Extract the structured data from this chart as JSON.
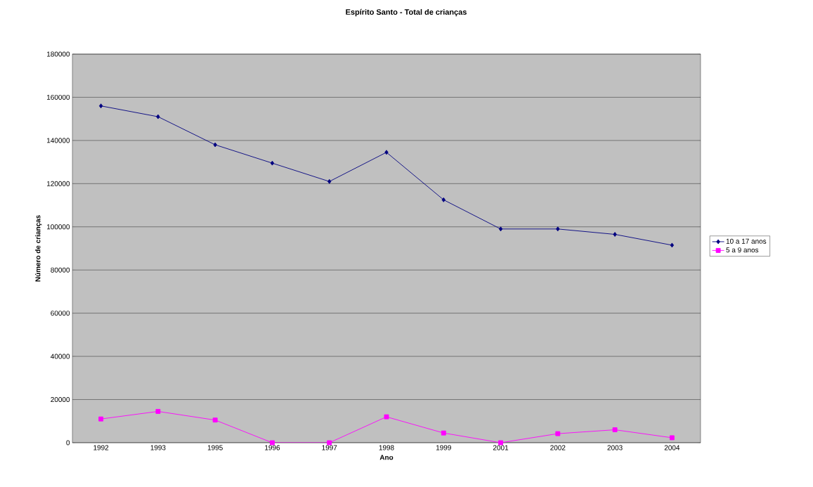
{
  "chart_data": {
    "type": "line",
    "title": "Espírito Santo - Total de crianças",
    "xlabel": "Ano",
    "ylabel": "Número de crianças",
    "categories": [
      "1992",
      "1993",
      "1995",
      "1996",
      "1997",
      "1998",
      "1999",
      "2001",
      "2002",
      "2003",
      "2004"
    ],
    "series": [
      {
        "name": "10 a 17 anos",
        "color": "#000080",
        "marker": "diamond",
        "values": [
          156000,
          151000,
          138000,
          129500,
          121000,
          134500,
          112500,
          99000,
          99000,
          96500,
          91500
        ]
      },
      {
        "name": "5 a 9 anos",
        "color": "#ff00ff",
        "marker": "square",
        "values": [
          11000,
          14500,
          10500,
          0,
          0,
          12000,
          4500,
          0,
          4200,
          6000,
          2300
        ]
      }
    ],
    "ylim": [
      0,
      180000
    ],
    "yticks": [
      0,
      20000,
      40000,
      60000,
      80000,
      100000,
      120000,
      140000,
      160000,
      180000
    ],
    "grid": "y",
    "legend": "right"
  }
}
